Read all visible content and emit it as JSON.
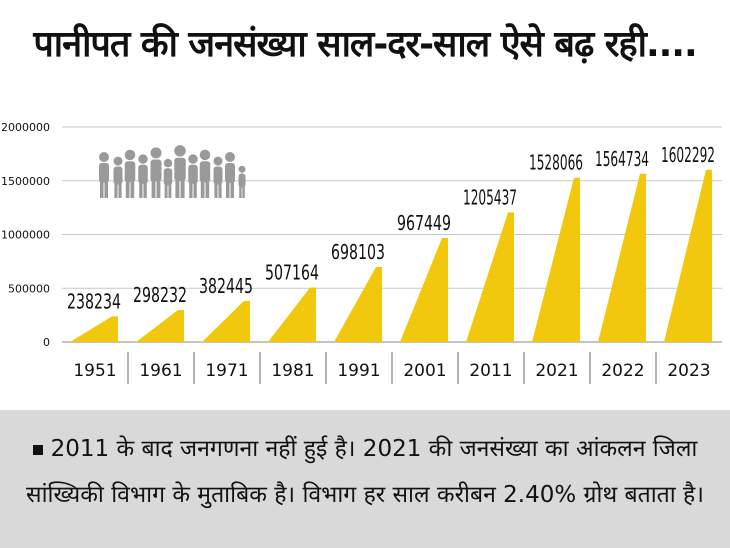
{
  "title": "पानीपत की जनसंख्या साल-दर-साल ऐसे बढ़ रही....",
  "note": {
    "line1": "2011 के बाद जनगणना नहीं हुई है। 2021 की जनसंख्या का आंकलन जिला",
    "line2": "सांख्यिकी विभाग के मुताबिक है। विभाग हर साल करीबन 2.40% ग्रोथ बताता है।"
  },
  "colors": {
    "bar": "#f2c80f",
    "text": "#111111",
    "grid": "#c8c8c8",
    "note_bg": "#d9d9d9",
    "people": "#9a9a9a"
  },
  "icons": [
    "people-group-icon"
  ],
  "chart_data": {
    "type": "area",
    "categories": [
      "1951",
      "1961",
      "1971",
      "1981",
      "1991",
      "2001",
      "2011",
      "2021",
      "2022",
      "2023"
    ],
    "values": [
      238234,
      298232,
      382445,
      507164,
      698103,
      967449,
      1205437,
      1528066,
      1564734,
      1602292
    ],
    "value_labels": [
      "238234",
      "298232",
      "382445",
      "507164",
      "698103",
      "967449",
      "1205437",
      "1528066",
      "1564734",
      "1602292"
    ],
    "yticks": [
      "0",
      "500000",
      "1000000",
      "1500000",
      "2000000"
    ],
    "ylim": [
      0,
      2000000
    ],
    "grid": true
  }
}
